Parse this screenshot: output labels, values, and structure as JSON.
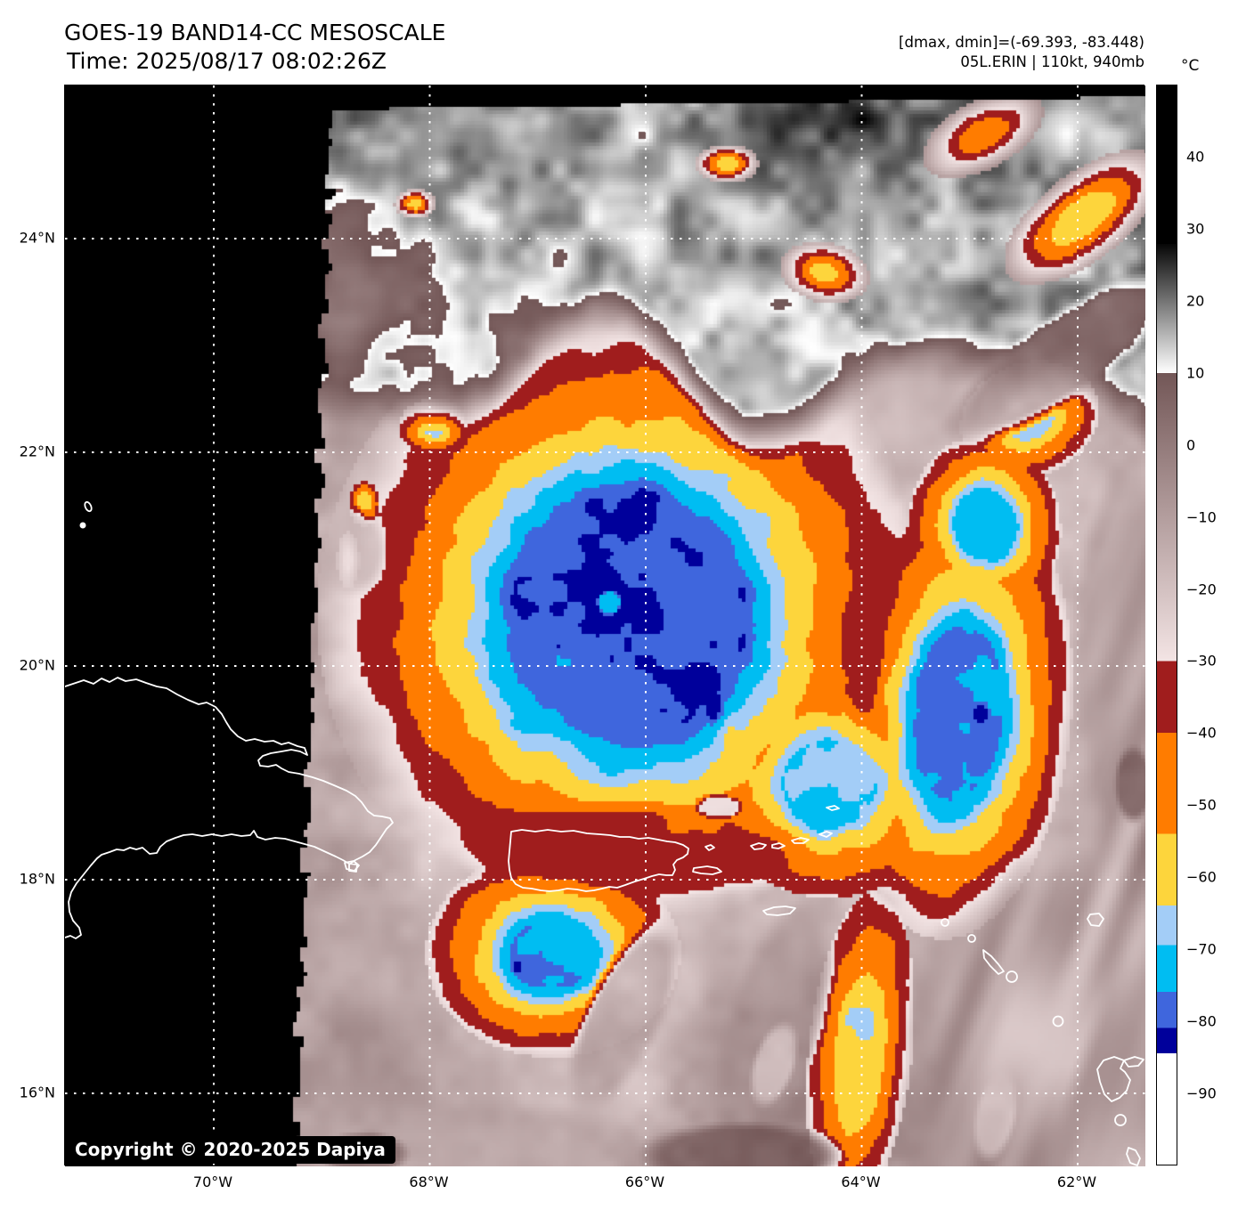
{
  "header": {
    "title": "GOES-19 BAND14-CC MESOSCALE",
    "time_line": "Time: 2025/08/17 08:02:26Z"
  },
  "annotations": {
    "range_line": "[dmax, dmin]=(-69.393, -83.448)",
    "storm_line": "05L.ERIN | 110kt, 940mb"
  },
  "storm": {
    "id": "05L",
    "name": "ERIN",
    "intensity_kt": "110kt",
    "pressure": "940mb",
    "dmax_c": -69.393,
    "dmin_c": -83.448
  },
  "colorbar": {
    "unit_label": "°C",
    "value_range": [
      50,
      -100
    ],
    "ticks": [
      {
        "value": 40,
        "label": "40"
      },
      {
        "value": 30,
        "label": "30"
      },
      {
        "value": 20,
        "label": "20"
      },
      {
        "value": 10,
        "label": "10"
      },
      {
        "value": 0,
        "label": "0"
      },
      {
        "value": -10,
        "label": "−10"
      },
      {
        "value": -20,
        "label": "−20"
      },
      {
        "value": -30,
        "label": "−30"
      },
      {
        "value": -40,
        "label": "−40"
      },
      {
        "value": -50,
        "label": "−50"
      },
      {
        "value": -60,
        "label": "−60"
      },
      {
        "value": -70,
        "label": "−70"
      },
      {
        "value": -80,
        "label": "−80"
      },
      {
        "value": -90,
        "label": "−90"
      }
    ],
    "segments": [
      {
        "t1": 50,
        "t2": 28,
        "c1": "#000000",
        "c2": "#000000"
      },
      {
        "t1": 28,
        "t2": 10,
        "c1": "#060606",
        "c2": "#ffffff"
      },
      {
        "t1": 10,
        "t2": -30,
        "c1": "#735757",
        "c2": "#f3e4e4"
      },
      {
        "t1": -30,
        "t2": -40,
        "c1": "#a01d1d",
        "c2": "#a01d1d"
      },
      {
        "t1": -40,
        "t2": -54,
        "c1": "#ff7c00",
        "c2": "#ff7c00"
      },
      {
        "t1": -54,
        "t2": -64,
        "c1": "#fdd53c",
        "c2": "#fdd53c"
      },
      {
        "t1": -64,
        "t2": -69.5,
        "c1": "#a3cdf7",
        "c2": "#a3cdf7"
      },
      {
        "t1": -69.5,
        "t2": -76,
        "c1": "#00bdf2",
        "c2": "#00bdf2"
      },
      {
        "t1": -76,
        "t2": -81,
        "c1": "#3f66dd",
        "c2": "#3f66dd"
      },
      {
        "t1": -81,
        "t2": -84.5,
        "c1": "#00009b",
        "c2": "#00009b"
      },
      {
        "t1": -84.5,
        "t2": -100,
        "c1": "#ffffff",
        "c2": "#ffffff"
      }
    ]
  },
  "axes": {
    "lat_labels": [
      {
        "label": "24°N",
        "lat": 24
      },
      {
        "label": "22°N",
        "lat": 22
      },
      {
        "label": "20°N",
        "lat": 20
      },
      {
        "label": "18°N",
        "lat": 18
      },
      {
        "label": "16°N",
        "lat": 16
      }
    ],
    "lon_labels": [
      {
        "label": "70°W",
        "lon": -70
      },
      {
        "label": "68°W",
        "lon": -68
      },
      {
        "label": "66°W",
        "lon": -66
      },
      {
        "label": "64°W",
        "lon": -64
      },
      {
        "label": "62°W",
        "lon": -62
      }
    ]
  },
  "footer": {
    "copyright": "Copyright © 2020-2025 Dapiya"
  }
}
